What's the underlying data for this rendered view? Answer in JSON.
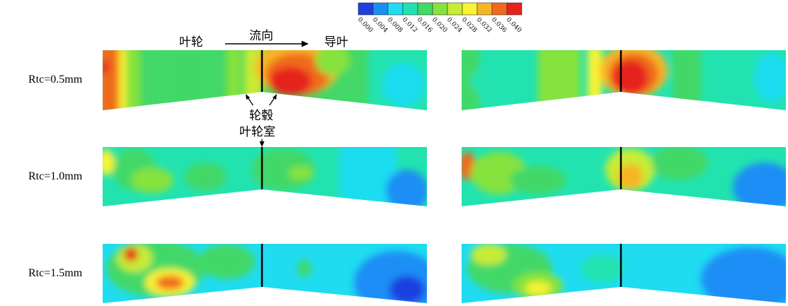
{
  "legend": {
    "colors": [
      "#1f3fe0",
      "#1a8ef5",
      "#1fdcf0",
      "#22e3b0",
      "#43d868",
      "#86e23e",
      "#c8ec34",
      "#f8f334",
      "#f6b527",
      "#f06a1e",
      "#e6221c"
    ],
    "ticks": [
      "0.000",
      "0.004",
      "0.008",
      "0.012",
      "0.016",
      "0.020",
      "0.024",
      "0.028",
      "0.032",
      "0.036",
      "0.040"
    ]
  },
  "annotations": {
    "impeller": "叶轮",
    "flow_direction": "流向",
    "guide_vane": "导叶",
    "hub": "轮毂",
    "impeller_chamber": "叶轮室"
  },
  "rows": [
    {
      "label": "Rtc=0.5mm"
    },
    {
      "label": "Rtc=1.0mm"
    },
    {
      "label": "Rtc=1.5mm"
    }
  ]
}
